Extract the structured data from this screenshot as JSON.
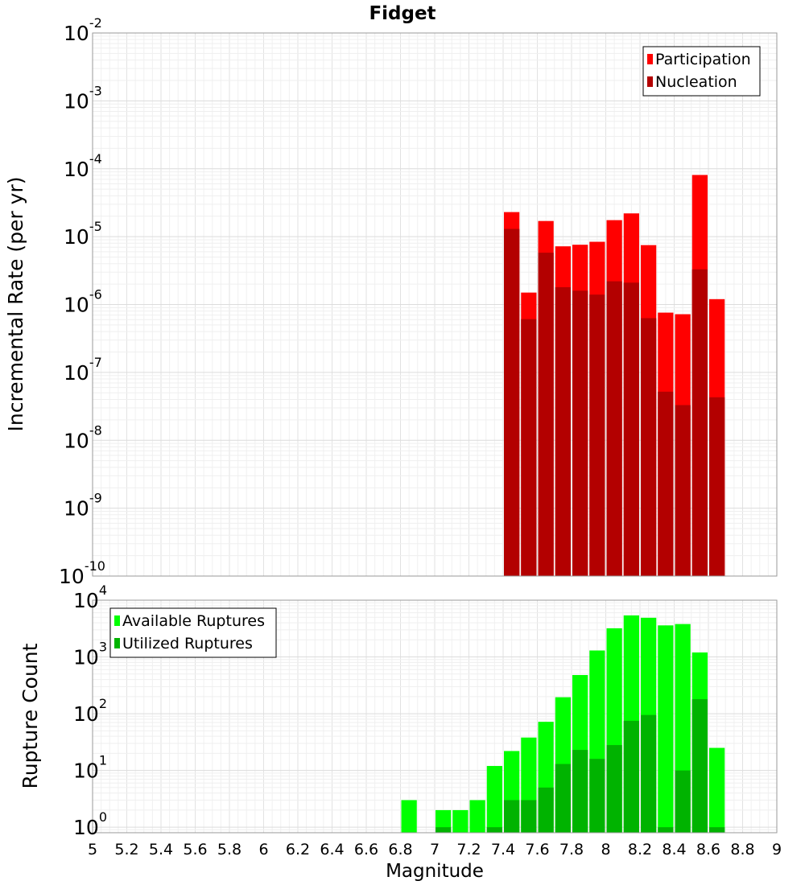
{
  "chart_data": [
    {
      "type": "bar",
      "title": "Fidget",
      "ylabel": "Incremental Rate (per yr)",
      "xlabel": "",
      "yscale": "log",
      "ylim": [
        1e-10,
        0.01
      ],
      "xlim": [
        5,
        9
      ],
      "y_ticks": [
        {
          "base": "10",
          "exp": "-10",
          "value": 1e-10
        },
        {
          "base": "10",
          "exp": "-9",
          "value": 1e-09
        },
        {
          "base": "10",
          "exp": "-8",
          "value": 1e-08
        },
        {
          "base": "10",
          "exp": "-7",
          "value": 1e-07
        },
        {
          "base": "10",
          "exp": "-6",
          "value": 1e-06
        },
        {
          "base": "10",
          "exp": "-5",
          "value": 1e-05
        },
        {
          "base": "10",
          "exp": "-4",
          "value": 0.0001
        },
        {
          "base": "10",
          "exp": "-3",
          "value": 0.001
        },
        {
          "base": "10",
          "exp": "-2",
          "value": 0.01
        }
      ],
      "x": [
        7.45,
        7.55,
        7.65,
        7.75,
        7.85,
        7.95,
        8.05,
        8.15,
        8.25,
        8.35,
        8.45,
        8.55,
        8.65
      ],
      "series": [
        {
          "name": "Participation",
          "color": "#ff0000",
          "values": [
            2.3e-05,
            1.5e-06,
            1.7e-05,
            7.2e-06,
            7.6e-06,
            8.4e-06,
            1.75e-05,
            2.2e-05,
            7.5e-06,
            7.6e-07,
            7.2e-07,
            8.1e-05,
            1.2e-06
          ]
        },
        {
          "name": "Nucleation",
          "color": "#b30000",
          "values": [
            1.3e-05,
            6.1e-07,
            5.8e-06,
            1.8e-06,
            1.6e-06,
            1.4e-06,
            2.2e-06,
            2.1e-06,
            6.3e-07,
            5.2e-08,
            3.3e-08,
            3.3e-06,
            4.3e-08
          ]
        }
      ],
      "legend": "top-right",
      "grid": true
    },
    {
      "type": "bar",
      "ylabel": "Rupture Count",
      "xlabel": "Magnitude",
      "yscale": "log",
      "ylim": [
        0.8,
        10000.0
      ],
      "xlim": [
        5,
        9
      ],
      "y_ticks": [
        {
          "base": "10",
          "exp": "0",
          "value": 1
        },
        {
          "base": "10",
          "exp": "1",
          "value": 10
        },
        {
          "base": "10",
          "exp": "2",
          "value": 100
        },
        {
          "base": "10",
          "exp": "3",
          "value": 1000
        },
        {
          "base": "10",
          "exp": "4",
          "value": 10000
        }
      ],
      "x_ticks": [
        "5",
        "5.2",
        "5.4",
        "5.6",
        "5.8",
        "6",
        "6.2",
        "6.4",
        "6.6",
        "6.8",
        "7",
        "7.2",
        "7.4",
        "7.6",
        "7.8",
        "8",
        "8.2",
        "8.4",
        "8.6",
        "8.8",
        "9"
      ],
      "x": [
        6.85,
        7.05,
        7.15,
        7.25,
        7.35,
        7.45,
        7.55,
        7.65,
        7.75,
        7.85,
        7.95,
        8.05,
        8.15,
        8.25,
        8.35,
        8.45,
        8.55,
        8.65
      ],
      "series": [
        {
          "name": "Available Ruptures",
          "color": "#00ff00",
          "values": [
            3,
            2,
            2,
            3,
            12,
            22,
            38,
            72,
            195,
            480,
            1300,
            3200,
            5400,
            4900,
            3600,
            3800,
            1200,
            25
          ]
        },
        {
          "name": "Utilized Ruptures",
          "color": "#00b300",
          "values": [
            null,
            1,
            null,
            null,
            1,
            3,
            3,
            5,
            13,
            23,
            16,
            28,
            75,
            95,
            1,
            10,
            180,
            1
          ]
        }
      ],
      "legend": "top-left",
      "grid": true
    }
  ]
}
